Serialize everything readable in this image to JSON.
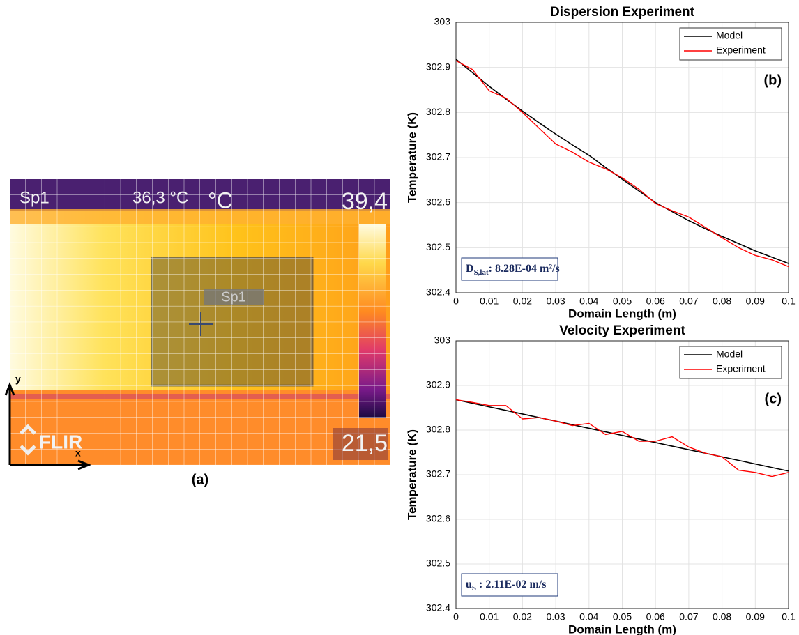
{
  "image": {
    "caption": "(a)",
    "spot_label": "Sp1",
    "spot_reading": "36,3 °C",
    "unit": "°C",
    "max_reading": "39,4",
    "spot_marker": "Sp1",
    "brand": "FLIR",
    "min_reading": "21,5",
    "axis_y": "y",
    "axis_x": "x"
  },
  "chart_data": [
    {
      "type": "line",
      "title": "Dispersion Experiment",
      "xlabel": "Domain Length (m)",
      "ylabel": "Temperature (K)",
      "panel_label": "(b)",
      "annotation": {
        "main": "D",
        "sub": "S,lat",
        "rest": ": 8.28E-04 m²/s"
      },
      "x": [
        0,
        0.005,
        0.01,
        0.015,
        0.02,
        0.025,
        0.03,
        0.035,
        0.04,
        0.045,
        0.05,
        0.055,
        0.06,
        0.065,
        0.07,
        0.075,
        0.08,
        0.085,
        0.09,
        0.095,
        0.1
      ],
      "series": [
        {
          "name": "Model",
          "color": "#000000",
          "values": [
            302.918,
            302.888,
            302.858,
            302.83,
            302.803,
            302.777,
            302.752,
            302.728,
            302.705,
            302.678,
            302.652,
            302.626,
            302.6,
            302.58,
            302.56,
            302.542,
            302.525,
            302.509,
            302.493,
            302.479,
            302.465
          ]
        },
        {
          "name": "Experiment",
          "color": "#ff0000",
          "values": [
            302.915,
            302.895,
            302.848,
            302.832,
            302.8,
            302.765,
            302.73,
            302.712,
            302.69,
            302.675,
            302.655,
            302.63,
            302.598,
            302.582,
            302.568,
            302.545,
            302.522,
            302.5,
            302.483,
            302.473,
            302.458
          ]
        }
      ],
      "xlim": [
        0,
        0.1
      ],
      "xticks": [
        0,
        0.01,
        0.02,
        0.03,
        0.04,
        0.05,
        0.06,
        0.07,
        0.08,
        0.09,
        0.1
      ],
      "ylim": [
        302.4,
        303
      ],
      "yticks": [
        302.4,
        302.5,
        302.6,
        302.7,
        302.8,
        302.9,
        303
      ],
      "grid": true,
      "legend": "upper right"
    },
    {
      "type": "line",
      "title": "Velocity Experiment",
      "xlabel": "Domain Length (m)",
      "ylabel": "Temperature (K)",
      "panel_label": "(c)",
      "annotation": {
        "main": "u",
        "sub": "S",
        "rest": " : 2.11E-02 m/s"
      },
      "x": [
        0,
        0.005,
        0.01,
        0.015,
        0.02,
        0.025,
        0.03,
        0.035,
        0.04,
        0.045,
        0.05,
        0.055,
        0.06,
        0.065,
        0.07,
        0.075,
        0.08,
        0.085,
        0.09,
        0.095,
        0.1
      ],
      "series": [
        {
          "name": "Model",
          "color": "#000000",
          "values": [
            302.868,
            302.86,
            302.852,
            302.844,
            302.836,
            302.828,
            302.82,
            302.812,
            302.804,
            302.796,
            302.788,
            302.78,
            302.772,
            302.764,
            302.756,
            302.748,
            302.74,
            302.732,
            302.724,
            302.716,
            302.708
          ]
        },
        {
          "name": "Experiment",
          "color": "#ff0000",
          "values": [
            302.868,
            302.862,
            302.855,
            302.855,
            302.825,
            302.828,
            302.82,
            302.81,
            302.815,
            302.79,
            302.797,
            302.775,
            302.775,
            302.785,
            302.762,
            302.748,
            302.74,
            302.71,
            302.705,
            302.696,
            302.705
          ]
        }
      ],
      "xlim": [
        0,
        0.1
      ],
      "xticks": [
        0,
        0.01,
        0.02,
        0.03,
        0.04,
        0.05,
        0.06,
        0.07,
        0.08,
        0.09,
        0.1
      ],
      "ylim": [
        302.4,
        303
      ],
      "yticks": [
        302.4,
        302.5,
        302.6,
        302.7,
        302.8,
        302.9,
        303
      ],
      "grid": true,
      "legend": "upper right"
    }
  ]
}
